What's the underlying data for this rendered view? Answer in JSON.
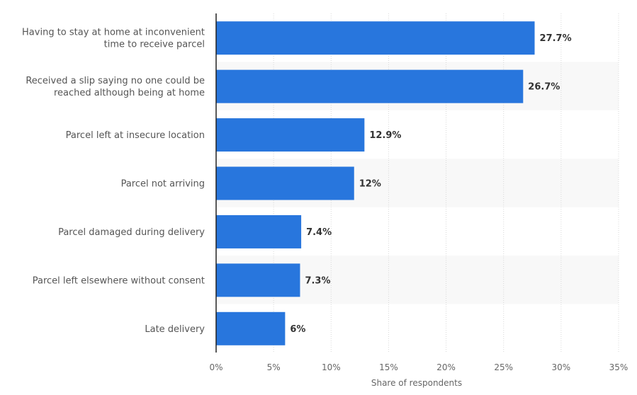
{
  "chart_data": {
    "type": "bar",
    "orientation": "horizontal",
    "title": "",
    "xlabel": "Share of respondents",
    "ylabel": "",
    "xlim": [
      0,
      35
    ],
    "x_ticks": [
      0,
      5,
      10,
      15,
      20,
      25,
      30,
      35
    ],
    "x_tick_labels": [
      "0%",
      "5%",
      "10%",
      "15%",
      "20%",
      "25%",
      "30%",
      "35%"
    ],
    "grid": "vertical dotted",
    "bar_color": "#2876dd",
    "band_color": "#f8f8f8",
    "categories": [
      [
        "Having to stay at home at inconvenient",
        "time to receive parcel"
      ],
      [
        "Received a slip saying no one could be",
        "reached although being at home"
      ],
      [
        "Parcel left at insecure location"
      ],
      [
        "Parcel not arriving"
      ],
      [
        "Parcel damaged during delivery"
      ],
      [
        "Parcel left elsewhere without consent"
      ],
      [
        "Late delivery"
      ]
    ],
    "values": [
      27.7,
      26.7,
      12.9,
      12,
      7.4,
      7.3,
      6
    ],
    "value_labels": [
      "27.7%",
      "26.7%",
      "12.9%",
      "12%",
      "7.4%",
      "7.3%",
      "6%"
    ]
  }
}
